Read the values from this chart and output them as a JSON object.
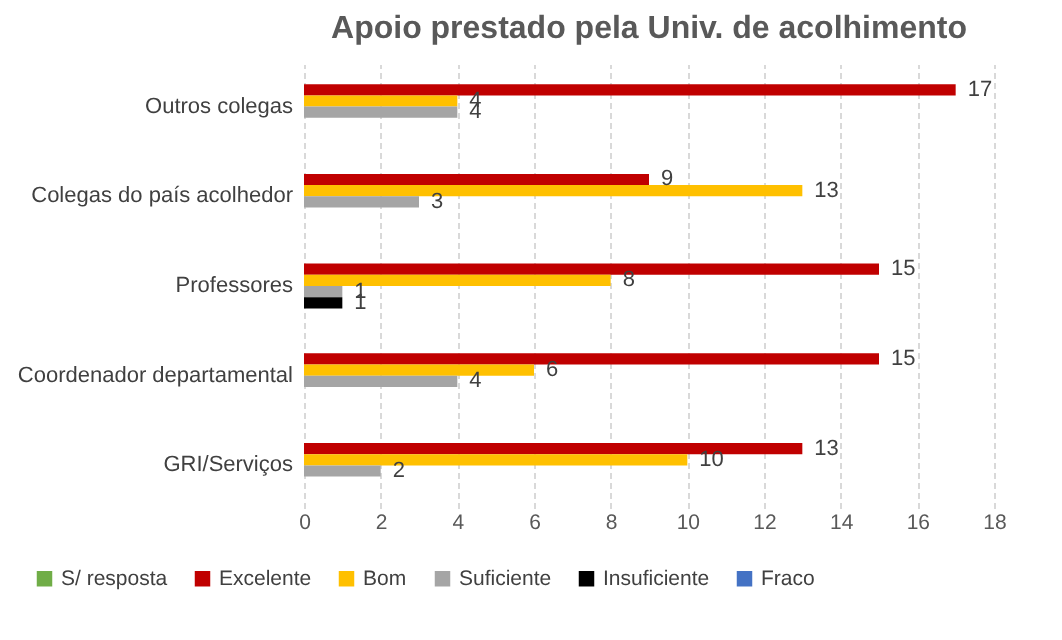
{
  "chart_data": {
    "type": "bar",
    "orientation": "horizontal",
    "title": "Apoio prestado pela Univ. de acolhimento",
    "categories": [
      "Outros colegas",
      "Colegas do país acolhedor",
      "Professores",
      "Coordenador departamental",
      "GRI/Serviços"
    ],
    "series": [
      {
        "name": "S/ resposta",
        "color": "#70ad47",
        "values": [
          null,
          null,
          null,
          null,
          null
        ]
      },
      {
        "name": "Excelente",
        "color": "#c00000",
        "values": [
          17,
          9,
          15,
          15,
          13
        ]
      },
      {
        "name": "Bom",
        "color": "#ffc000",
        "values": [
          4,
          13,
          8,
          6,
          10
        ]
      },
      {
        "name": "Suficiente",
        "color": "#a5a5a5",
        "values": [
          4,
          3,
          1,
          4,
          2
        ]
      },
      {
        "name": "Insuficiente",
        "color": "#000000",
        "values": [
          null,
          null,
          1,
          null,
          null
        ]
      },
      {
        "name": "Fraco",
        "color": "#4472c4",
        "values": [
          null,
          null,
          null,
          null,
          null
        ]
      }
    ],
    "xlim": [
      0,
      18
    ],
    "xticks": [
      0,
      2,
      4,
      6,
      8,
      10,
      12,
      14,
      16,
      18
    ],
    "grid": "x",
    "legend": "bottom",
    "data_labels": true
  }
}
